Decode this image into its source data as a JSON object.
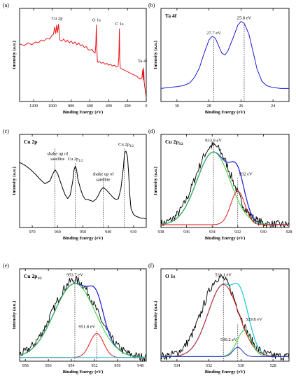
{
  "chart_data": [
    {
      "type": "line",
      "panel": "(a)",
      "title": "",
      "xlabel": "Binding Energy (eV)",
      "ylabel": "Intensity (a.u.)",
      "xlim": [
        1350,
        0
      ],
      "ylim": [
        0,
        100
      ],
      "xticks": [
        1200,
        1000,
        800,
        600,
        400,
        200,
        0
      ],
      "series": [
        {
          "name": "",
          "color": "#e8141a",
          "points": [
            [
              1350,
              62
            ],
            [
              1300,
              60
            ],
            [
              1260,
              63
            ],
            [
              1220,
              61
            ],
            [
              1180,
              64
            ],
            [
              1150,
              63
            ],
            [
              1120,
              66
            ],
            [
              1090,
              65
            ],
            [
              1060,
              68
            ],
            [
              1030,
              67
            ],
            [
              1005,
              71
            ],
            [
              990,
              72
            ],
            [
              975,
              80
            ],
            [
              965,
              73
            ],
            [
              955,
              82
            ],
            [
              945,
              74
            ],
            [
              935,
              83
            ],
            [
              920,
              66
            ],
            [
              900,
              65
            ],
            [
              880,
              67
            ],
            [
              860,
              64
            ],
            [
              840,
              66
            ],
            [
              820,
              63
            ],
            [
              800,
              65
            ],
            [
              780,
              62
            ],
            [
              760,
              64
            ],
            [
              740,
              61
            ],
            [
              720,
              63
            ],
            [
              700,
              60
            ],
            [
              680,
              61
            ],
            [
              660,
              58
            ],
            [
              640,
              59
            ],
            [
              620,
              56
            ],
            [
              600,
              55
            ],
            [
              580,
              56
            ],
            [
              560,
              53
            ],
            [
              545,
              52
            ],
            [
              538,
              60
            ],
            [
              532,
              82
            ],
            [
              528,
              62
            ],
            [
              522,
              45
            ],
            [
              515,
              42
            ],
            [
              500,
              43
            ],
            [
              480,
              41
            ],
            [
              460,
              42
            ],
            [
              440,
              40
            ],
            [
              420,
              41
            ],
            [
              400,
              39
            ],
            [
              380,
              40
            ],
            [
              360,
              38
            ],
            [
              340,
              39
            ],
            [
              320,
              37
            ],
            [
              300,
              38
            ],
            [
              292,
              48
            ],
            [
              286,
              78
            ],
            [
              282,
              44
            ],
            [
              276,
              36
            ],
            [
              260,
              35
            ],
            [
              240,
              34
            ],
            [
              220,
              33
            ],
            [
              200,
              32
            ],
            [
              180,
              31
            ],
            [
              160,
              30
            ],
            [
              140,
              29
            ],
            [
              120,
              28
            ],
            [
              100,
              27
            ],
            [
              80,
              25
            ],
            [
              60,
              24
            ],
            [
              45,
              26
            ],
            [
              38,
              34
            ],
            [
              32,
              23
            ],
            [
              27,
              36
            ],
            [
              22,
              21
            ],
            [
              15,
              15
            ],
            [
              8,
              10
            ],
            [
              3,
              6
            ],
            [
              0,
              4
            ]
          ]
        }
      ],
      "annotations": [
        {
          "text": "Cu 2p",
          "x": 950,
          "y": 88
        },
        {
          "text": "O 1s",
          "x": 531,
          "y": 86
        },
        {
          "text": "C 1s",
          "x": 285,
          "y": 82
        },
        {
          "text": "Ta 4f",
          "x": 40,
          "y": 42
        }
      ]
    },
    {
      "type": "line",
      "panel": "(b)",
      "title": "Ta 4f",
      "xlabel": "Binding Energy (eV)",
      "ylabel": "Intensity (a.u.)",
      "xlim": [
        31,
        23
      ],
      "ylim": [
        0,
        100
      ],
      "xticks": [
        30,
        28,
        26,
        24
      ],
      "series": [
        {
          "name": "",
          "color": "#1a1adc",
          "points": [
            [
              31,
              14
            ],
            [
              30.5,
              15
            ],
            [
              30,
              16
            ],
            [
              29.6,
              17
            ],
            [
              29.2,
              20
            ],
            [
              28.9,
              26
            ],
            [
              28.6,
              36
            ],
            [
              28.3,
              52
            ],
            [
              28.0,
              66
            ],
            [
              27.8,
              70
            ],
            [
              27.6,
              68
            ],
            [
              27.4,
              60
            ],
            [
              27.2,
              52
            ],
            [
              27.0,
              50
            ],
            [
              26.8,
              55
            ],
            [
              26.5,
              68
            ],
            [
              26.2,
              82
            ],
            [
              26.0,
              86
            ],
            [
              25.8,
              84
            ],
            [
              25.5,
              72
            ],
            [
              25.2,
              50
            ],
            [
              25.0,
              35
            ],
            [
              24.7,
              22
            ],
            [
              24.4,
              17
            ],
            [
              24.0,
              15
            ],
            [
              23.5,
              14
            ],
            [
              23,
              14
            ]
          ]
        }
      ],
      "annotations": [
        {
          "text": "27.7 eV",
          "x": 27.7,
          "y": 70
        },
        {
          "text": "25.8 eV",
          "x": 25.8,
          "y": 86
        }
      ],
      "vlines": [
        27.7,
        25.8
      ]
    },
    {
      "type": "line",
      "panel": "(c)",
      "title": "Cu 2p",
      "xlabel": "Binding Energy (eV)",
      "ylabel": "Intensity (a.u.)",
      "xlim": [
        975,
        925
      ],
      "ylim": [
        0,
        100
      ],
      "xticks": [
        970,
        960,
        950,
        940,
        930
      ],
      "series": [
        {
          "name": "",
          "color": "#000000",
          "points": [
            [
              975,
              70
            ],
            [
              973,
              67
            ],
            [
              971,
              63
            ],
            [
              969,
              58
            ],
            [
              967,
              52
            ],
            [
              965,
              47
            ],
            [
              963,
              50
            ],
            [
              962,
              57
            ],
            [
              961,
              62
            ],
            [
              960,
              58
            ],
            [
              959,
              50
            ],
            [
              958,
              42
            ],
            [
              957,
              35
            ],
            [
              956,
              31
            ],
            [
              955,
              35
            ],
            [
              954,
              50
            ],
            [
              953.5,
              62
            ],
            [
              953,
              66
            ],
            [
              952.5,
              62
            ],
            [
              952,
              52
            ],
            [
              951,
              42
            ],
            [
              950,
              34
            ],
            [
              949,
              30
            ],
            [
              948,
              30
            ],
            [
              947,
              29
            ],
            [
              946,
              28
            ],
            [
              945,
              30
            ],
            [
              944,
              34
            ],
            [
              943,
              40
            ],
            [
              942,
              43
            ],
            [
              941,
              41
            ],
            [
              940,
              38
            ],
            [
              939,
              35
            ],
            [
              938,
              32
            ],
            [
              937,
              30
            ],
            [
              936,
              31
            ],
            [
              935,
              42
            ],
            [
              934,
              65
            ],
            [
              933.6,
              80
            ],
            [
              933,
              82
            ],
            [
              932.4,
              76
            ],
            [
              932,
              60
            ],
            [
              931.5,
              35
            ],
            [
              931,
              20
            ],
            [
              930,
              14
            ],
            [
              929,
              12
            ],
            [
              928,
              11
            ],
            [
              927,
              10
            ],
            [
              926,
              10
            ],
            [
              925,
              9
            ]
          ]
        }
      ],
      "annotations": [
        {
          "text": "shake up of",
          "x": 960,
          "y": 78
        },
        {
          "text": "satellite",
          "x": 960,
          "y": 72
        },
        {
          "text": "Cu 2p",
          "sub": "1/2",
          "x": 953,
          "y": 72
        },
        {
          "text": "shake up of",
          "x": 942,
          "y": 56
        },
        {
          "text": "satellite",
          "x": 942,
          "y": 50
        },
        {
          "text": "Cu 2p",
          "sub": "3/2",
          "x": 933,
          "y": 88
        }
      ],
      "vlines": [
        961,
        953,
        942,
        933.6
      ]
    },
    {
      "type": "line",
      "panel": "(d)",
      "title": "Cu 2p",
      "title_sub": "3/2",
      "xlabel": "Binding Energy (eV)",
      "ylabel": "Intensity (a.u.)",
      "xlim": [
        938,
        928
      ],
      "ylim": [
        0,
        100
      ],
      "xticks": [
        938,
        936,
        934,
        932,
        930,
        928
      ],
      "series": [
        {
          "name": "",
          "role": "raw",
          "color": "#000000",
          "kind": "raw",
          "center": 933.9,
          "sigma": 1.4,
          "amp": 85,
          "base": 3
        },
        {
          "name": "",
          "role": "envelope",
          "color": "#1f2bd8",
          "kind": "sum2",
          "c1": 933.9,
          "s1": 1.3,
          "a1": 78,
          "c2": 932.0,
          "s2": 0.55,
          "a2": 36,
          "base": 3
        },
        {
          "name": "",
          "role": "component",
          "color": "#2fd12f",
          "kind": "gauss",
          "center": 933.9,
          "sigma": 1.3,
          "amp": 78,
          "base": 3
        },
        {
          "name": "",
          "role": "component",
          "color": "#e01a1a",
          "kind": "gauss",
          "center": 932.0,
          "sigma": 0.55,
          "amp": 36,
          "base": 3
        }
      ],
      "annotations": [
        {
          "text": "933.9 eV",
          "x": 933.9,
          "y": 92
        },
        {
          "text": "932 eV",
          "x": 932.0,
          "y": 56
        }
      ],
      "vlines": [
        933.9,
        932.0
      ]
    },
    {
      "type": "line",
      "panel": "(e)",
      "title": "Cu 2p",
      "title_sub": "1/2",
      "xlabel": "Binding Energy (eV)",
      "ylabel": "Intensity (a.u.)",
      "xlim": [
        958.5,
        947.5
      ],
      "ylim": [
        0,
        100
      ],
      "xticks": [
        958,
        956,
        954,
        952,
        950,
        948
      ],
      "series": [
        {
          "name": "",
          "role": "raw",
          "color": "#000000",
          "kind": "raw",
          "center": 953.7,
          "sigma": 1.9,
          "amp": 84,
          "base": 4
        },
        {
          "name": "",
          "role": "envelope",
          "color": "#1f2bd8",
          "kind": "sum2",
          "c1": 953.7,
          "s1": 1.8,
          "a1": 80,
          "c2": 951.8,
          "s2": 0.6,
          "a2": 26,
          "base": 4
        },
        {
          "name": "",
          "role": "component",
          "color": "#2fd12f",
          "kind": "gauss",
          "center": 953.7,
          "sigma": 1.8,
          "amp": 80,
          "base": 4
        },
        {
          "name": "",
          "role": "component",
          "color": "#e01a1a",
          "kind": "gauss",
          "center": 951.8,
          "sigma": 0.6,
          "amp": 26,
          "base": 4
        },
        {
          "name": "",
          "role": "baseline",
          "color": "#25c8e0",
          "kind": "flat",
          "base": 4
        }
      ],
      "annotations": [
        {
          "text": "953.7 eV",
          "x": 953.7,
          "y": 92
        },
        {
          "text": "951.8 eV",
          "x": 951.8,
          "y": 36
        }
      ],
      "vlines": [
        953.7,
        951.8
      ]
    },
    {
      "type": "line",
      "panel": "(f)",
      "title": "O 1s",
      "xlabel": "Binding Energy (eV)",
      "ylabel": "Intensity (a.u.)",
      "xlim": [
        535,
        527
      ],
      "ylim": [
        0,
        100
      ],
      "xticks": [
        534,
        532,
        530,
        528
      ],
      "series": [
        {
          "name": "",
          "role": "raw",
          "color": "#000000",
          "kind": "raw",
          "center": 531.3,
          "sigma": 1.1,
          "amp": 86,
          "base": 5
        },
        {
          "name": "",
          "role": "envelope",
          "color": "#25c8e0",
          "kind": "sum3",
          "c1": 531.1,
          "s1": 0.95,
          "a1": 78,
          "c2": 529.8,
          "s2": 0.45,
          "a2": 28,
          "c3": 530.2,
          "s3": 0.3,
          "a3": 10,
          "base": 5
        },
        {
          "name": "",
          "role": "component",
          "color": "#e01a1a",
          "kind": "gauss",
          "center": 531.1,
          "sigma": 0.95,
          "amp": 78,
          "base": 5
        },
        {
          "name": "",
          "role": "component",
          "color": "#2fd12f",
          "kind": "gauss",
          "center": 529.8,
          "sigma": 0.45,
          "amp": 28,
          "base": 5
        },
        {
          "name": "",
          "role": "component",
          "color": "#1f2bd8",
          "kind": "gauss",
          "center": 530.2,
          "sigma": 0.3,
          "amp": 10,
          "base": 5
        }
      ],
      "annotations": [
        {
          "text": "531.1 eV",
          "x": 531.1,
          "y": 92
        },
        {
          "text": "529.8 eV",
          "x": 529.8,
          "y": 44
        },
        {
          "text": "530.2 eV",
          "x": 530.2,
          "y": 22
        }
      ],
      "vlines": [
        531.1,
        530.2
      ]
    }
  ]
}
